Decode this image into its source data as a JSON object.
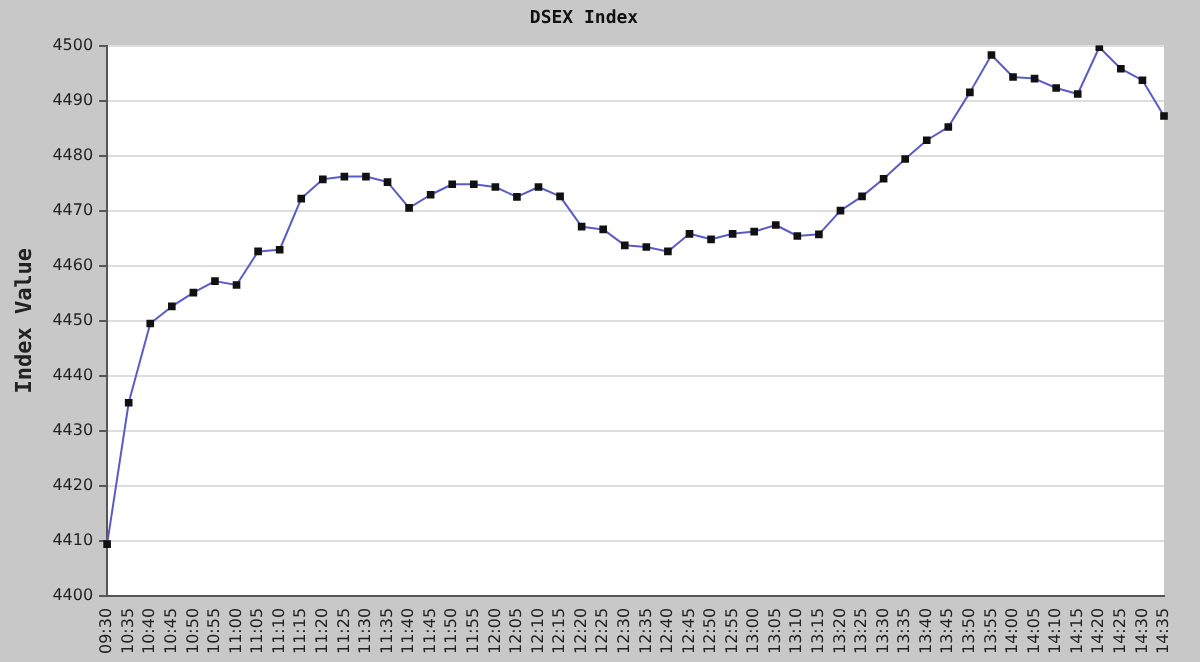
{
  "chart_data": {
    "type": "line",
    "title": "DSEX Index",
    "ylabel": "Index Value",
    "categories": [
      "09:30",
      "10:35",
      "10:40",
      "10:45",
      "10:50",
      "10:55",
      "11:00",
      "11:05",
      "11:10",
      "11:15",
      "11:20",
      "11:25",
      "11:30",
      "11:35",
      "11:40",
      "11:45",
      "11:50",
      "11:55",
      "12:00",
      "12:05",
      "12:10",
      "12:15",
      "12:20",
      "12:25",
      "12:30",
      "12:35",
      "12:40",
      "12:45",
      "12:50",
      "12:55",
      "13:00",
      "13:05",
      "13:10",
      "13:15",
      "13:20",
      "13:25",
      "13:30",
      "13:35",
      "13:40",
      "13:45",
      "13:50",
      "13:55",
      "14:00",
      "14:05",
      "14:10",
      "14:15",
      "14:20",
      "14:25",
      "14:30",
      "14:35"
    ],
    "series": [
      {
        "color": "#5b5bc8",
        "values": [
          4409.4,
          4435.1,
          4449.5,
          4452.6,
          4455.1,
          4457.2,
          4456.5,
          4462.6,
          4462.9,
          4472.2,
          4475.7,
          4476.2,
          4476.2,
          4475.2,
          4470.5,
          4472.9,
          4474.8,
          4474.8,
          4474.3,
          4472.5,
          4474.3,
          4472.6,
          4467.1,
          4466.6,
          4463.7,
          4463.4,
          4462.6,
          4465.8,
          4464.8,
          4465.8,
          4466.2,
          4467.4,
          4465.4,
          4465.7,
          4470.0,
          4472.6,
          4475.8,
          4479.4,
          4482.8,
          4485.2,
          4491.5,
          4498.3,
          4494.3,
          4494.0,
          4492.3,
          4491.2,
          4499.7,
          4495.8,
          4493.7,
          4487.2
        ]
      }
    ],
    "ylim": [
      4400,
      4500
    ],
    "yticks": [
      4400,
      4410,
      4420,
      4430,
      4440,
      4450,
      4460,
      4470,
      4480,
      4490,
      4500
    ],
    "grid": "y",
    "marker": "square",
    "line_style": "solid",
    "legend": false
  }
}
